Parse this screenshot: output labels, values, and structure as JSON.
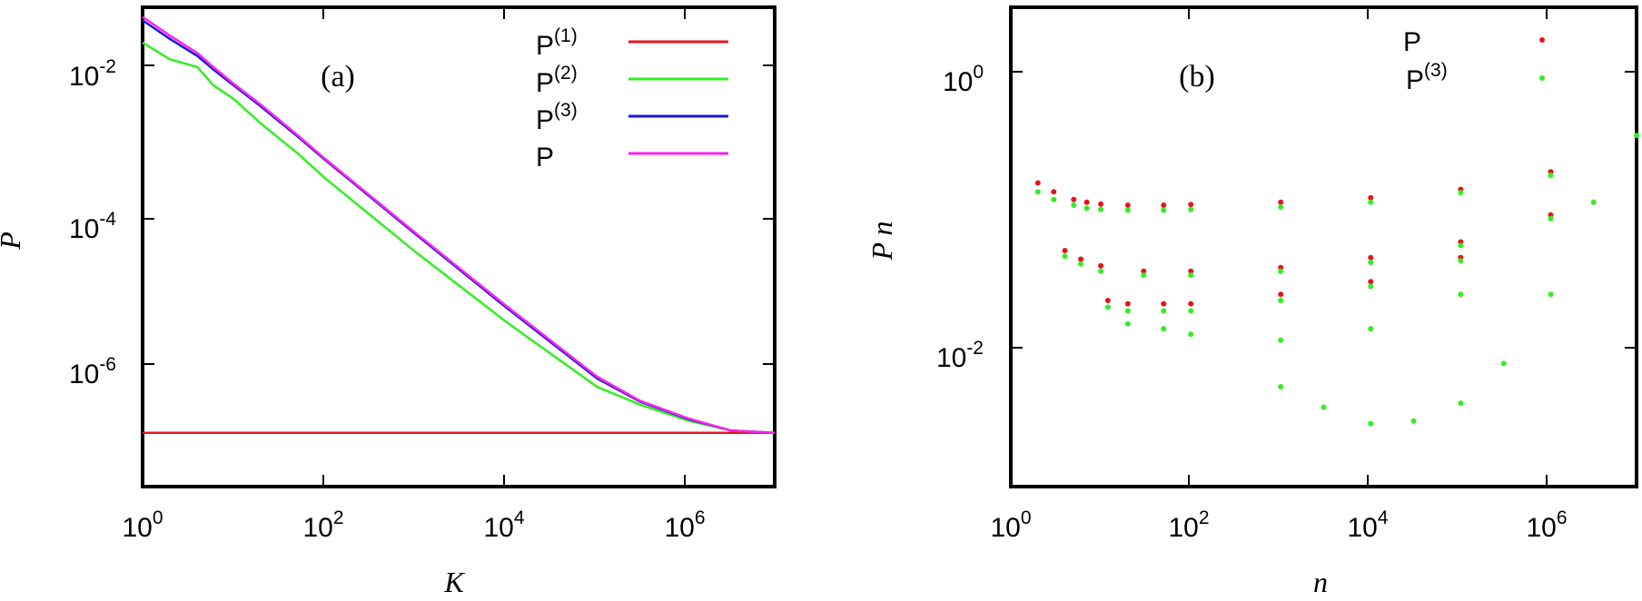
{
  "chart_data": [
    {
      "type": "line",
      "panel_label": "(a)",
      "xlabel": "K",
      "ylabel": "P",
      "x_scale": "log",
      "y_scale": "log",
      "xlim": [
        1,
        9000000
      ],
      "ylim": [
        4e-09,
        0.05
      ],
      "x_ticks": [
        1,
        100,
        10000,
        1000000
      ],
      "x_tick_labels": [
        {
          "base": "10",
          "exp": "0"
        },
        {
          "base": "10",
          "exp": "2"
        },
        {
          "base": "10",
          "exp": "4"
        },
        {
          "base": "10",
          "exp": "6"
        }
      ],
      "y_ticks": [
        0.01,
        0.0001,
        1e-06
      ],
      "y_tick_labels": [
        {
          "base": "10",
          "exp": "-2"
        },
        {
          "base": "10",
          "exp": "-4"
        },
        {
          "base": "10",
          "exp": "-6"
        }
      ],
      "legend_position": "top-right",
      "series": [
        {
          "name": "P",
          "sup": "(1)",
          "color": "#e8141c",
          "x": [
            1,
            9000000
          ],
          "y": [
            2.5e-08,
            2.5e-08
          ]
        },
        {
          "name": "P",
          "sup": "(2)",
          "color": "#33ee22",
          "x": [
            1,
            2,
            4,
            6,
            10,
            20,
            50,
            100,
            1000,
            10000,
            100000,
            300000,
            1000000,
            3000000,
            9000000
          ],
          "y": [
            0.015,
            0.0085,
            0.0065,
            0.0035,
            0.0022,
            0.00095,
            0.00035,
            0.00015,
            1.2e-05,
            1.1e-06,
            1.2e-07,
            6.5e-08,
            3.8e-08,
            2.7e-08,
            2.5e-08
          ]
        },
        {
          "name": "P",
          "sup": "(3)",
          "color": "#1a1ad8",
          "x": [
            1,
            2,
            4,
            6,
            10,
            20,
            50,
            100,
            1000,
            10000,
            100000,
            300000,
            1000000,
            3000000,
            9000000
          ],
          "y": [
            0.032,
            0.017,
            0.0095,
            0.006,
            0.0035,
            0.0017,
            0.00062,
            0.00028,
            2.2e-05,
            1.8e-06,
            1.6e-07,
            7.2e-08,
            4e-08,
            2.7e-08,
            2.5e-08
          ]
        },
        {
          "name": "P",
          "sup": "",
          "color": "#ff22ee",
          "x": [
            1,
            2,
            4,
            6,
            10,
            20,
            50,
            100,
            1000,
            10000,
            100000,
            300000,
            1000000,
            3000000,
            9000000
          ],
          "y": [
            0.036,
            0.019,
            0.0105,
            0.0065,
            0.0037,
            0.0018,
            0.00065,
            0.00029,
            2.3e-05,
            1.9e-06,
            1.7e-07,
            7.4e-08,
            4.1e-08,
            2.7e-08,
            2.5e-08
          ]
        }
      ]
    },
    {
      "type": "scatter",
      "panel_label": "(b)",
      "xlabel": "n",
      "ylabel": "P n",
      "x_scale": "log",
      "y_scale": "log",
      "xlim": [
        1,
        9000000
      ],
      "ylim": [
        0.0007,
        3
      ],
      "x_ticks": [
        1,
        100,
        10000,
        1000000
      ],
      "x_tick_labels": [
        {
          "base": "10",
          "exp": "0"
        },
        {
          "base": "10",
          "exp": "2"
        },
        {
          "base": "10",
          "exp": "4"
        },
        {
          "base": "10",
          "exp": "6"
        }
      ],
      "y_ticks": [
        1,
        0.01
      ],
      "y_tick_labels": [
        {
          "base": "10",
          "exp": "0"
        },
        {
          "base": "10",
          "exp": "-2"
        }
      ],
      "legend_position": "top-right",
      "series": [
        {
          "name": "P",
          "sup": "",
          "color": "#e8141c",
          "x": [
            2,
            3,
            5,
            7,
            10,
            20,
            50,
            100,
            1000,
            10000,
            100000,
            1000000,
            4,
            6,
            10,
            30,
            100,
            1000,
            10000,
            100000,
            1000000,
            12,
            20,
            50,
            100,
            1000,
            10000,
            100000
          ],
          "y": [
            0.14,
            0.12,
            0.105,
            0.1,
            0.097,
            0.095,
            0.095,
            0.096,
            0.1,
            0.108,
            0.125,
            0.17,
            0.043,
            0.037,
            0.033,
            0.03,
            0.03,
            0.032,
            0.038,
            0.05,
            0.08,
            0.018,
            0.017,
            0.017,
            0.017,
            0.02,
            0.025,
            0.038
          ]
        },
        {
          "name": "P",
          "sup": "(3)",
          "color": "#33ee22",
          "x": [
            2,
            3,
            5,
            7,
            10,
            20,
            50,
            100,
            1000,
            10000,
            100000,
            1000000,
            9000000,
            4,
            6,
            10,
            30,
            100,
            1000,
            10000,
            100000,
            1000000,
            12,
            20,
            50,
            100,
            1000,
            10000,
            100000,
            20,
            50,
            100,
            1000,
            10000,
            100000,
            1000,
            3000,
            10000,
            30000,
            100000,
            300000,
            1000000,
            3000000
          ],
          "y": [
            0.12,
            0.105,
            0.095,
            0.09,
            0.088,
            0.087,
            0.087,
            0.088,
            0.092,
            0.1,
            0.118,
            0.16,
            0.32,
            0.039,
            0.034,
            0.03,
            0.028,
            0.028,
            0.03,
            0.035,
            0.047,
            0.075,
            0.016,
            0.015,
            0.015,
            0.015,
            0.018,
            0.023,
            0.036,
            0.012,
            0.011,
            0.01,
            0.009,
            0.011,
            0.02,
            0.004,
            0.0028,
            0.0021,
            0.0022,
            0.003,
            0.006,
            0.02,
            0.1
          ]
        }
      ]
    }
  ]
}
